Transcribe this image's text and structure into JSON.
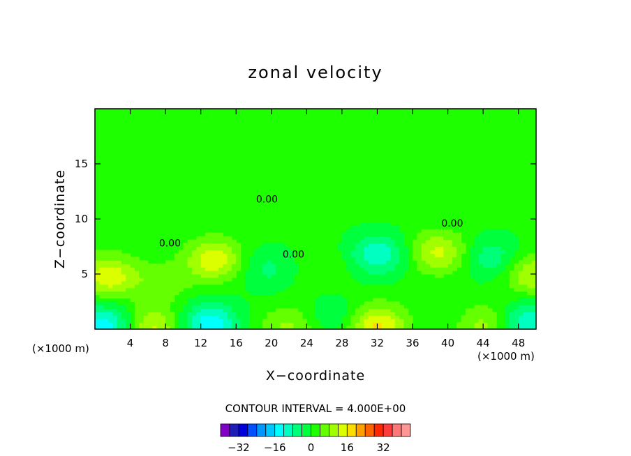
{
  "chart_data": {
    "type": "heatmap",
    "title": "zonal velocity",
    "xlabel": "X−coordinate",
    "ylabel": "Z−coordinate",
    "x_unit_left": "(×1000 m)",
    "x_unit_right": "(×1000 m)",
    "xlim": [
      0,
      50
    ],
    "ylim": [
      0,
      20
    ],
    "xticks": [
      4,
      8,
      12,
      16,
      20,
      24,
      28,
      32,
      36,
      40,
      44,
      48
    ],
    "xtick_labels": [
      "4",
      "8",
      "12",
      "16",
      "20",
      "24",
      "28",
      "32",
      "36",
      "40",
      "44",
      "48"
    ],
    "yticks": [
      5,
      10,
      15
    ],
    "ytick_labels": [
      "5",
      "10",
      "15"
    ],
    "contour_interval_text": "CONTOUR INTERVAL = 4.000E+00",
    "contour_labels": [
      {
        "text": "0.00",
        "x": 19.5,
        "y": 11.5
      },
      {
        "text": "0.00",
        "x": 40.5,
        "y": 9.3
      },
      {
        "text": "0.00",
        "x": 8.5,
        "y": 7.5
      },
      {
        "text": "0.00",
        "x": 22.5,
        "y": 6.5
      }
    ],
    "features": [
      {
        "x": 13.5,
        "y": 6.3,
        "v": 14
      },
      {
        "x": 1.5,
        "y": 4.8,
        "v": 14
      },
      {
        "x": 7.5,
        "y": 4.2,
        "v": 6
      },
      {
        "x": 32.0,
        "y": 6.8,
        "v": -12
      },
      {
        "x": 39.0,
        "y": 7.0,
        "v": 12
      },
      {
        "x": 45.0,
        "y": 6.5,
        "v": -8
      },
      {
        "x": 49.5,
        "y": 5.0,
        "v": 11
      },
      {
        "x": 19.5,
        "y": 5.5,
        "v": -6
      },
      {
        "x": 26.0,
        "y": 5.5,
        "v": 3
      },
      {
        "x": 32.0,
        "y": 0.3,
        "v": 16
      },
      {
        "x": 6.5,
        "y": 0.2,
        "v": 12
      },
      {
        "x": 1.0,
        "y": 0.3,
        "v": -16
      },
      {
        "x": 13.0,
        "y": 0.5,
        "v": -16
      },
      {
        "x": 22.0,
        "y": 0.2,
        "v": 8
      },
      {
        "x": 44.5,
        "y": 0.3,
        "v": 9
      },
      {
        "x": 49.0,
        "y": 0.5,
        "v": -14
      },
      {
        "x": 27.0,
        "y": 1.2,
        "v": -5
      }
    ],
    "colorbar": {
      "colors": [
        "#8000c8",
        "#1e1eb4",
        "#0000dc",
        "#0050ff",
        "#0096ff",
        "#00c8ff",
        "#00ffff",
        "#00ffc0",
        "#00ff78",
        "#00ff3c",
        "#1eff00",
        "#64ff00",
        "#a0ff00",
        "#dcff00",
        "#ffdc00",
        "#ffa000",
        "#ff6400",
        "#ff2800",
        "#ff3c3c",
        "#ff7878",
        "#ff9696"
      ],
      "tick_values": [
        -32,
        -16,
        0,
        16,
        32
      ],
      "tick_labels": [
        "−32",
        "−16",
        "0",
        "16",
        "32"
      ],
      "range": [
        -40,
        44
      ]
    }
  }
}
